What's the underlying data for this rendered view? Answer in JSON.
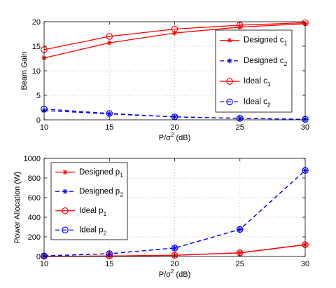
{
  "colors": {
    "red": "#ff0000",
    "blue": "#0000ff"
  },
  "chart_data": [
    {
      "type": "line",
      "x": [
        10,
        15,
        20,
        25,
        30
      ],
      "xlim": [
        10,
        30
      ],
      "ylim": [
        0,
        20
      ],
      "xticks": [
        "10",
        "15",
        "20",
        "25",
        "30"
      ],
      "yticks": [
        "0",
        "5",
        "10",
        "15",
        "20"
      ],
      "xlabel": {
        "main": "P/σ",
        "sup": "2",
        "rest": " (dB)"
      },
      "ylabel": "Beam Gain",
      "grid": true,
      "legend_position": "right",
      "series": [
        {
          "name": "Designed c",
          "sub": "1",
          "values": [
            12.6,
            15.7,
            17.7,
            18.9,
            19.6
          ],
          "color": "red",
          "dash": "solid",
          "marker": "star"
        },
        {
          "name": "Designed c",
          "sub": "2",
          "values": [
            1.9,
            1.2,
            0.6,
            0.3,
            0.1
          ],
          "color": "blue",
          "dash": "dashed",
          "marker": "star"
        },
        {
          "name": "Ideal c",
          "sub": "1",
          "values": [
            14.3,
            17.0,
            18.5,
            19.3,
            19.8
          ],
          "color": "red",
          "dash": "solid",
          "marker": "circle"
        },
        {
          "name": "Ideal c",
          "sub": "2",
          "values": [
            2.2,
            1.3,
            0.6,
            0.3,
            0.1
          ],
          "color": "blue",
          "dash": "dashed",
          "marker": "circle"
        }
      ]
    },
    {
      "type": "line",
      "x": [
        10,
        15,
        20,
        25,
        30
      ],
      "xlim": [
        10,
        30
      ],
      "ylim": [
        0,
        1000
      ],
      "xticks": [
        "10",
        "15",
        "20",
        "25",
        "30"
      ],
      "yticks": [
        "0",
        "200",
        "400",
        "600",
        "800",
        "1000"
      ],
      "xlabel": {
        "main": "P/σ",
        "sup": "2",
        "rest": " (dB)"
      },
      "ylabel": "Power Allocation (W)",
      "grid": true,
      "legend_position": "top-left",
      "series": [
        {
          "name": "Designed p",
          "sub": "1",
          "values": [
            2,
            4,
            12,
            37,
            120
          ],
          "color": "red",
          "dash": "solid",
          "marker": "star"
        },
        {
          "name": "Designed p",
          "sub": "2",
          "values": [
            6,
            28,
            86,
            276,
            877
          ],
          "color": "blue",
          "dash": "dashed",
          "marker": "star"
        },
        {
          "name": "Ideal p",
          "sub": "1",
          "values": [
            2,
            4,
            12,
            37,
            120
          ],
          "color": "red",
          "dash": "solid",
          "marker": "circle"
        },
        {
          "name": "Ideal p",
          "sub": "2",
          "values": [
            6,
            28,
            86,
            276,
            877
          ],
          "color": "blue",
          "dash": "dashed",
          "marker": "circle"
        }
      ]
    }
  ]
}
